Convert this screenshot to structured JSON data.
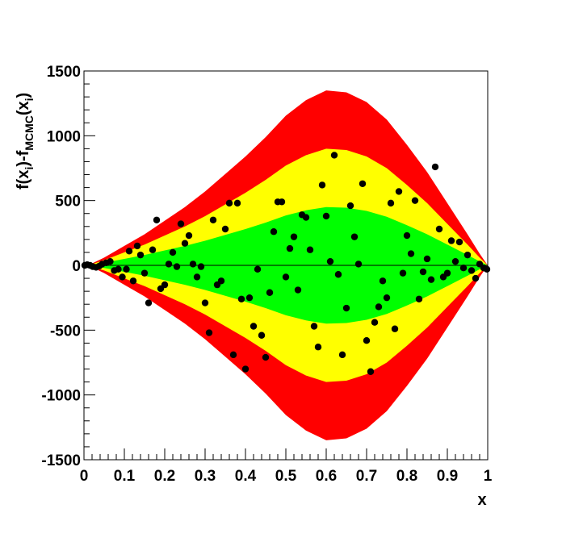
{
  "chart_data": {
    "type": "scatter",
    "title": "",
    "xlabel": "x",
    "ylabel": {
      "part1": "f(x",
      "sub1": "i",
      "part2": ")-f",
      "sub2": "MCMC",
      "part3": "(x",
      "sub3": "i",
      "part4": ")"
    },
    "xlim": [
      0,
      1
    ],
    "ylim": [
      -1500,
      1500
    ],
    "x_ticks": [
      0,
      0.1,
      0.2,
      0.3,
      0.4,
      0.5,
      0.6,
      0.7,
      0.8,
      0.9,
      1
    ],
    "x_tick_labels": [
      "0",
      "0.1",
      "0.2",
      "0.3",
      "0.4",
      "0.5",
      "0.6",
      "0.7",
      "0.8",
      "0.9",
      "1"
    ],
    "y_ticks": [
      -1500,
      -1000,
      -500,
      0,
      500,
      1000,
      1500
    ],
    "y_tick_labels": [
      "-1500",
      "-1000",
      "-500",
      "0",
      "500",
      "1000",
      "1500"
    ],
    "grid": false,
    "bands": [
      {
        "name": "3sigma",
        "color": "#ff0000",
        "scale": 3
      },
      {
        "name": "2sigma",
        "color": "#ffff00",
        "scale": 2
      },
      {
        "name": "1sigma",
        "color": "#00ff00",
        "scale": 1
      }
    ],
    "band_envelope": {
      "x": [
        0,
        0.02,
        0.05,
        0.1,
        0.15,
        0.2,
        0.25,
        0.3,
        0.35,
        0.4,
        0.45,
        0.5,
        0.55,
        0.6,
        0.65,
        0.7,
        0.75,
        0.8,
        0.85,
        0.9,
        0.95,
        0.98,
        1.0
      ],
      "sigma1": [
        0,
        5,
        20,
        50,
        80,
        115,
        150,
        190,
        235,
        280,
        330,
        385,
        425,
        450,
        445,
        420,
        375,
        310,
        240,
        160,
        80,
        30,
        0
      ]
    },
    "zero_line": 0,
    "points": {
      "x": [
        0.002,
        0.008,
        0.015,
        0.022,
        0.03,
        0.038,
        0.045,
        0.055,
        0.065,
        0.075,
        0.085,
        0.095,
        0.105,
        0.112,
        0.122,
        0.132,
        0.14,
        0.15,
        0.16,
        0.17,
        0.18,
        0.19,
        0.2,
        0.21,
        0.22,
        0.23,
        0.24,
        0.25,
        0.26,
        0.27,
        0.28,
        0.29,
        0.3,
        0.31,
        0.32,
        0.33,
        0.34,
        0.35,
        0.36,
        0.37,
        0.38,
        0.39,
        0.4,
        0.41,
        0.42,
        0.43,
        0.44,
        0.45,
        0.46,
        0.47,
        0.48,
        0.49,
        0.5,
        0.51,
        0.52,
        0.53,
        0.54,
        0.55,
        0.56,
        0.57,
        0.58,
        0.59,
        0.6,
        0.61,
        0.62,
        0.63,
        0.64,
        0.65,
        0.66,
        0.67,
        0.68,
        0.69,
        0.7,
        0.71,
        0.72,
        0.73,
        0.74,
        0.75,
        0.76,
        0.77,
        0.78,
        0.79,
        0.8,
        0.81,
        0.82,
        0.83,
        0.84,
        0.85,
        0.86,
        0.87,
        0.88,
        0.89,
        0.9,
        0.91,
        0.92,
        0.93,
        0.94,
        0.95,
        0.96,
        0.97,
        0.98,
        0.99,
        0.998
      ],
      "y": [
        0,
        5,
        0,
        -10,
        -15,
        -5,
        10,
        20,
        30,
        -40,
        -30,
        -90,
        -30,
        110,
        -120,
        150,
        80,
        -60,
        -290,
        120,
        350,
        -180,
        -150,
        10,
        100,
        -10,
        320,
        170,
        230,
        10,
        -90,
        -10,
        -290,
        -520,
        350,
        -150,
        -120,
        280,
        480,
        -690,
        480,
        -260,
        -800,
        -250,
        -470,
        -30,
        -540,
        -710,
        -210,
        260,
        490,
        490,
        -90,
        130,
        220,
        -190,
        390,
        370,
        120,
        -470,
        -630,
        620,
        380,
        30,
        850,
        -70,
        -690,
        -330,
        460,
        220,
        10,
        630,
        -580,
        -820,
        -440,
        -320,
        -120,
        -250,
        480,
        -490,
        570,
        -60,
        230,
        90,
        500,
        -260,
        -50,
        50,
        -110,
        760,
        280,
        -90,
        -60,
        190,
        30,
        180,
        -20,
        80,
        -40,
        -100,
        10,
        -20,
        -30
      ]
    },
    "marker_color": "#000000"
  }
}
